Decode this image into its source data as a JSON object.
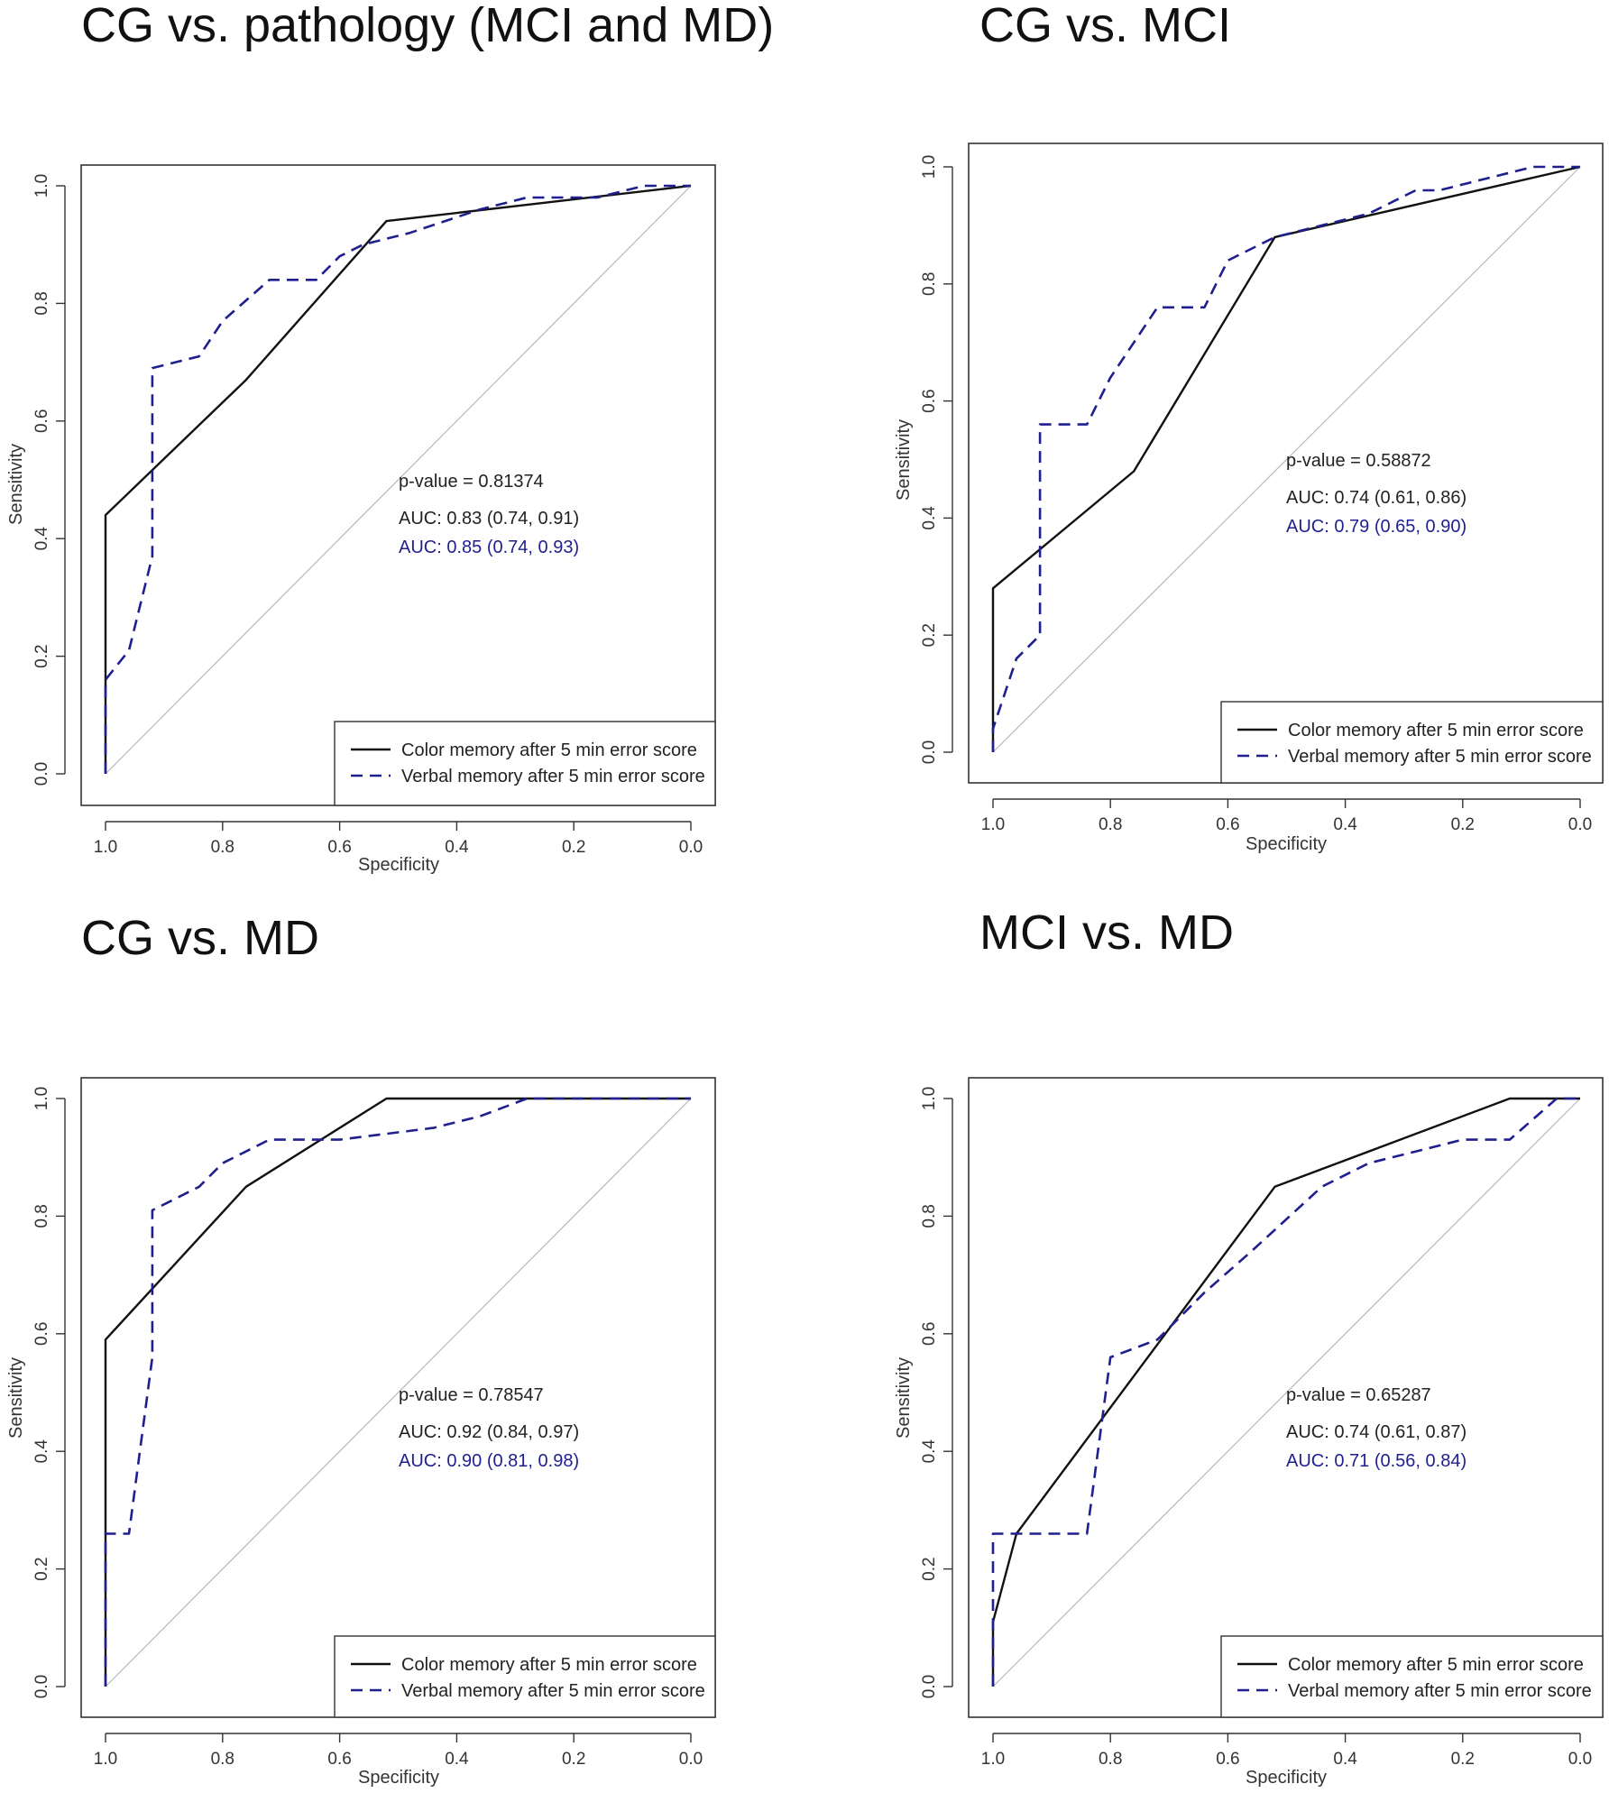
{
  "chart_data": [
    {
      "type": "line",
      "title": "CG vs. pathology (MCI and MD)",
      "xlabel": "Specificity",
      "ylabel": "Sensitivity",
      "xlim": [
        1.0,
        0.0
      ],
      "ylim": [
        0.0,
        1.0
      ],
      "xticks": [
        "1.0",
        "0.8",
        "0.6",
        "0.4",
        "0.2",
        "0.0"
      ],
      "yticks": [
        "0.0",
        "0.2",
        "0.4",
        "0.6",
        "0.8",
        "1.0"
      ],
      "pvalue": "p-value = 0.81374",
      "auc_color": "AUC: 0.83 (0.74, 0.91)",
      "auc_verbal": "AUC: 0.85 (0.74, 0.93)",
      "legend": [
        "Color memory after 5 min error score",
        "Verbal memory after 5 min error score"
      ],
      "series": [
        {
          "name": "Color memory after 5 min error score",
          "style": "solid",
          "color": "#111111",
          "x": [
            1.0,
            1.0,
            0.76,
            0.52,
            0.0
          ],
          "y": [
            0.0,
            0.44,
            0.67,
            0.94,
            1.0
          ]
        },
        {
          "name": "Verbal memory after 5 min error score",
          "style": "dashed",
          "color": "#1f1f8f",
          "x": [
            1.0,
            1.0,
            0.96,
            0.92,
            0.92,
            0.84,
            0.8,
            0.72,
            0.64,
            0.6,
            0.56,
            0.48,
            0.36,
            0.28,
            0.16,
            0.08,
            0.0
          ],
          "y": [
            0.0,
            0.16,
            0.21,
            0.37,
            0.69,
            0.71,
            0.77,
            0.84,
            0.84,
            0.88,
            0.9,
            0.92,
            0.96,
            0.98,
            0.98,
            1.0,
            1.0
          ]
        }
      ]
    },
    {
      "type": "line",
      "title": "CG vs. MCI",
      "xlabel": "Specificity",
      "ylabel": "Sensitivity",
      "xlim": [
        1.0,
        0.0
      ],
      "ylim": [
        0.0,
        1.0
      ],
      "xticks": [
        "1.0",
        "0.8",
        "0.6",
        "0.4",
        "0.2",
        "0.0"
      ],
      "yticks": [
        "0.0",
        "0.2",
        "0.4",
        "0.6",
        "0.8",
        "1.0"
      ],
      "pvalue": "p-value = 0.58872",
      "auc_color": "AUC: 0.74 (0.61, 0.86)",
      "auc_verbal": "AUC: 0.79 (0.65, 0.90)",
      "legend": [
        "Color memory after 5 min error score",
        "Verbal memory after 5 min error score"
      ],
      "series": [
        {
          "name": "Color memory after 5 min error score",
          "style": "solid",
          "color": "#111111",
          "x": [
            1.0,
            1.0,
            0.76,
            0.52,
            0.0
          ],
          "y": [
            0.0,
            0.28,
            0.48,
            0.88,
            1.0
          ]
        },
        {
          "name": "Verbal memory after 5 min error score",
          "style": "dashed",
          "color": "#1f1f8f",
          "x": [
            1.0,
            1.0,
            0.96,
            0.92,
            0.92,
            0.84,
            0.8,
            0.72,
            0.64,
            0.6,
            0.52,
            0.44,
            0.36,
            0.28,
            0.24,
            0.16,
            0.08,
            0.0
          ],
          "y": [
            0.0,
            0.04,
            0.16,
            0.2,
            0.56,
            0.56,
            0.64,
            0.76,
            0.76,
            0.84,
            0.88,
            0.9,
            0.92,
            0.96,
            0.96,
            0.98,
            1.0,
            1.0
          ]
        }
      ]
    },
    {
      "type": "line",
      "title": "CG vs. MD",
      "xlabel": "Specificity",
      "ylabel": "Sensitivity",
      "xlim": [
        1.0,
        0.0
      ],
      "ylim": [
        0.0,
        1.0
      ],
      "xticks": [
        "1.0",
        "0.8",
        "0.6",
        "0.4",
        "0.2",
        "0.0"
      ],
      "yticks": [
        "0.0",
        "0.2",
        "0.4",
        "0.6",
        "0.8",
        "1.0"
      ],
      "pvalue": "p-value = 0.78547",
      "auc_color": "AUC: 0.92 (0.84, 0.97)",
      "auc_verbal": "AUC: 0.90 (0.81, 0.98)",
      "legend": [
        "Color memory after 5 min error score",
        "Verbal memory after 5 min error score"
      ],
      "series": [
        {
          "name": "Color memory after 5 min error score",
          "style": "solid",
          "color": "#111111",
          "x": [
            1.0,
            1.0,
            0.76,
            0.52,
            0.0
          ],
          "y": [
            0.0,
            0.59,
            0.85,
            1.0,
            1.0
          ]
        },
        {
          "name": "Verbal memory after 5 min error score",
          "style": "dashed",
          "color": "#1f1f8f",
          "x": [
            1.0,
            1.0,
            0.96,
            0.92,
            0.92,
            0.84,
            0.8,
            0.72,
            0.64,
            0.6,
            0.52,
            0.44,
            0.36,
            0.28,
            0.0
          ],
          "y": [
            0.0,
            0.26,
            0.26,
            0.56,
            0.81,
            0.85,
            0.89,
            0.93,
            0.93,
            0.93,
            0.94,
            0.95,
            0.97,
            1.0,
            1.0
          ]
        }
      ]
    },
    {
      "type": "line",
      "title": "MCI vs. MD",
      "xlabel": "Specificity",
      "ylabel": "Sensitivity",
      "xlim": [
        1.0,
        0.0
      ],
      "ylim": [
        0.0,
        1.0
      ],
      "xticks": [
        "1.0",
        "0.8",
        "0.6",
        "0.4",
        "0.2",
        "0.0"
      ],
      "yticks": [
        "0.0",
        "0.2",
        "0.4",
        "0.6",
        "0.8",
        "1.0"
      ],
      "pvalue": "p-value = 0.65287",
      "auc_color": "AUC: 0.74 (0.61, 0.87)",
      "auc_verbal": "AUC: 0.71 (0.56, 0.84)",
      "legend": [
        "Color memory after 5 min error score",
        "Verbal memory after 5 min error score"
      ],
      "series": [
        {
          "name": "Color memory after 5 min error score",
          "style": "solid",
          "color": "#111111",
          "x": [
            1.0,
            1.0,
            0.96,
            0.52,
            0.12,
            0.0
          ],
          "y": [
            0.0,
            0.11,
            0.26,
            0.85,
            1.0,
            1.0
          ]
        },
        {
          "name": "Verbal memory after 5 min error score",
          "style": "dashed",
          "color": "#1f1f8f",
          "x": [
            1.0,
            1.0,
            0.84,
            0.8,
            0.72,
            0.64,
            0.56,
            0.44,
            0.36,
            0.28,
            0.2,
            0.12,
            0.04,
            0.0
          ],
          "y": [
            0.0,
            0.26,
            0.26,
            0.56,
            0.59,
            0.67,
            0.74,
            0.85,
            0.89,
            0.91,
            0.93,
            0.93,
            1.0,
            1.0
          ]
        }
      ]
    }
  ]
}
